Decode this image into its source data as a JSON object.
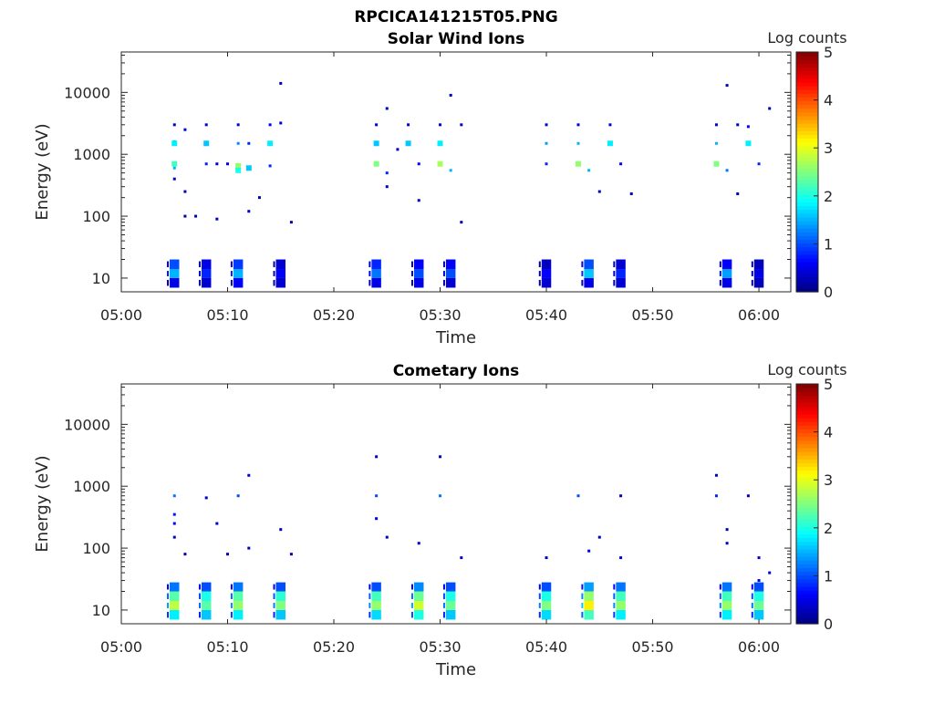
{
  "figure": {
    "title": "RPCICA141215T05.PNG"
  },
  "chart_data": [
    {
      "type": "heatmap",
      "title": "Solar Wind Ions",
      "xlabel": "Time",
      "ylabel": "Energy (eV)",
      "x_ticks": [
        "05:00",
        "05:10",
        "05:20",
        "05:30",
        "05:40",
        "05:50",
        "06:00"
      ],
      "y_ticks": [
        "10",
        "100",
        "1000",
        "10000"
      ],
      "y_scale": "log",
      "xlim": [
        "05:00",
        "06:03"
      ],
      "ylim": [
        6,
        45000
      ],
      "colorbar": {
        "label": "Log counts",
        "ticks": [
          "0",
          "1",
          "2",
          "3",
          "4",
          "5"
        ],
        "range": [
          0,
          5
        ],
        "colormap": "jet"
      },
      "grid": false,
      "points": [
        {
          "t": "05:05",
          "e": 3000,
          "v": 0.3
        },
        {
          "t": "05:05",
          "e": 1600,
          "v": 1.2
        },
        {
          "t": "05:05",
          "e": 1500,
          "v": 1.8
        },
        {
          "t": "05:05",
          "e": 700,
          "v": 2.2
        },
        {
          "t": "05:05",
          "e": 600,
          "v": 1.5
        },
        {
          "t": "05:05",
          "e": 400,
          "v": 0.3
        },
        {
          "t": "05:06",
          "e": 2500,
          "v": 0.4
        },
        {
          "t": "05:06",
          "e": 250,
          "v": 0.2
        },
        {
          "t": "05:06",
          "e": 100,
          "v": 0.2
        },
        {
          "t": "05:07",
          "e": 100,
          "v": 0.3
        },
        {
          "t": "05:08",
          "e": 3000,
          "v": 0.4
        },
        {
          "t": "05:08",
          "e": 1500,
          "v": 1.6
        },
        {
          "t": "05:08",
          "e": 700,
          "v": 0.8
        },
        {
          "t": "05:09",
          "e": 700,
          "v": 0.4
        },
        {
          "t": "05:09",
          "e": 90,
          "v": 0.3
        },
        {
          "t": "05:10",
          "e": 700,
          "v": 0.5
        },
        {
          "t": "05:11",
          "e": 3000,
          "v": 0.5
        },
        {
          "t": "05:11",
          "e": 1500,
          "v": 1.3
        },
        {
          "t": "05:11",
          "e": 650,
          "v": 2.6
        },
        {
          "t": "05:11",
          "e": 550,
          "v": 2.0
        },
        {
          "t": "05:12",
          "e": 600,
          "v": 1.6
        },
        {
          "t": "05:12",
          "e": 1500,
          "v": 0.8
        },
        {
          "t": "05:12",
          "e": 120,
          "v": 0.3
        },
        {
          "t": "05:13",
          "e": 200,
          "v": 0.2
        },
        {
          "t": "05:14",
          "e": 3000,
          "v": 0.6
        },
        {
          "t": "05:14",
          "e": 1500,
          "v": 1.8
        },
        {
          "t": "05:14",
          "e": 650,
          "v": 0.8
        },
        {
          "t": "05:15",
          "e": 3200,
          "v": 0.4
        },
        {
          "t": "05:15",
          "e": 14000,
          "v": 0.3
        },
        {
          "t": "05:16",
          "e": 80,
          "v": 0.2
        },
        {
          "t": "05:24",
          "e": 700,
          "v": 2.5
        },
        {
          "t": "05:24",
          "e": 1500,
          "v": 1.6
        },
        {
          "t": "05:24",
          "e": 3000,
          "v": 0.4
        },
        {
          "t": "05:25",
          "e": 5500,
          "v": 0.3
        },
        {
          "t": "05:25",
          "e": 500,
          "v": 0.8
        },
        {
          "t": "05:25",
          "e": 300,
          "v": 0.3
        },
        {
          "t": "05:26",
          "e": 1200,
          "v": 0.3
        },
        {
          "t": "05:27",
          "e": 3000,
          "v": 0.4
        },
        {
          "t": "05:27",
          "e": 1500,
          "v": 1.6
        },
        {
          "t": "05:28",
          "e": 700,
          "v": 0.6
        },
        {
          "t": "05:28",
          "e": 180,
          "v": 0.3
        },
        {
          "t": "05:30",
          "e": 3000,
          "v": 0.4
        },
        {
          "t": "05:30",
          "e": 1500,
          "v": 1.8
        },
        {
          "t": "05:30",
          "e": 700,
          "v": 2.7
        },
        {
          "t": "05:31",
          "e": 550,
          "v": 1.5
        },
        {
          "t": "05:31",
          "e": 9000,
          "v": 0.3
        },
        {
          "t": "05:32",
          "e": 3000,
          "v": 0.3
        },
        {
          "t": "05:32",
          "e": 80,
          "v": 0.2
        },
        {
          "t": "05:40",
          "e": 3000,
          "v": 0.4
        },
        {
          "t": "05:40",
          "e": 1500,
          "v": 1.4
        },
        {
          "t": "05:40",
          "e": 700,
          "v": 0.8
        },
        {
          "t": "05:43",
          "e": 3000,
          "v": 0.5
        },
        {
          "t": "05:43",
          "e": 1500,
          "v": 1.5
        },
        {
          "t": "05:43",
          "e": 700,
          "v": 2.6
        },
        {
          "t": "05:44",
          "e": 550,
          "v": 1.5
        },
        {
          "t": "05:45",
          "e": 250,
          "v": 0.3
        },
        {
          "t": "05:46",
          "e": 3000,
          "v": 0.4
        },
        {
          "t": "05:46",
          "e": 1500,
          "v": 1.8
        },
        {
          "t": "05:47",
          "e": 700,
          "v": 0.6
        },
        {
          "t": "05:48",
          "e": 230,
          "v": 0.3
        },
        {
          "t": "05:56",
          "e": 3000,
          "v": 0.4
        },
        {
          "t": "05:56",
          "e": 1500,
          "v": 1.5
        },
        {
          "t": "05:56",
          "e": 700,
          "v": 2.5
        },
        {
          "t": "05:57",
          "e": 550,
          "v": 1.2
        },
        {
          "t": "05:57",
          "e": 13000,
          "v": 0.3
        },
        {
          "t": "05:58",
          "e": 3000,
          "v": 0.3
        },
        {
          "t": "05:58",
          "e": 230,
          "v": 0.3
        },
        {
          "t": "05:59",
          "e": 2800,
          "v": 0.6
        },
        {
          "t": "05:59",
          "e": 1500,
          "v": 1.8
        },
        {
          "t": "06:00",
          "e": 700,
          "v": 0.8
        },
        {
          "t": "06:01",
          "e": 5500,
          "v": 0.3
        }
      ],
      "low_bands": [
        {
          "t": "05:05",
          "v": [
            0.5,
            1.5,
            1.0
          ]
        },
        {
          "t": "05:08",
          "v": [
            0.4,
            0.8,
            0.5
          ]
        },
        {
          "t": "05:11",
          "v": [
            0.6,
            1.5,
            0.9
          ]
        },
        {
          "t": "05:15",
          "v": [
            0.4,
            0.6,
            0.4
          ]
        },
        {
          "t": "05:24",
          "v": [
            0.5,
            1.2,
            0.8
          ]
        },
        {
          "t": "05:28",
          "v": [
            0.5,
            1.0,
            0.6
          ]
        },
        {
          "t": "05:31",
          "v": [
            0.4,
            1.0,
            0.6
          ]
        },
        {
          "t": "05:40",
          "v": [
            0.4,
            0.6,
            0.3
          ]
        },
        {
          "t": "05:44",
          "v": [
            0.5,
            1.6,
            1.0
          ]
        },
        {
          "t": "05:47",
          "v": [
            0.4,
            0.8,
            0.4
          ]
        },
        {
          "t": "05:57",
          "v": [
            0.5,
            1.4,
            0.6
          ]
        },
        {
          "t": "06:00",
          "v": [
            0.3,
            0.5,
            0.3
          ]
        }
      ]
    },
    {
      "type": "heatmap",
      "title": "Cometary Ions",
      "xlabel": "Time",
      "ylabel": "Energy (eV)",
      "x_ticks": [
        "05:00",
        "05:10",
        "05:20",
        "05:30",
        "05:40",
        "05:50",
        "06:00"
      ],
      "y_ticks": [
        "10",
        "100",
        "1000",
        "10000"
      ],
      "y_scale": "log",
      "xlim": [
        "05:00",
        "06:03"
      ],
      "ylim": [
        6,
        45000
      ],
      "colorbar": {
        "label": "Log counts",
        "ticks": [
          "0",
          "1",
          "2",
          "3",
          "4",
          "5"
        ],
        "range": [
          0,
          5
        ],
        "colormap": "jet"
      },
      "grid": false,
      "points": [
        {
          "t": "05:05",
          "e": 700,
          "v": 1.2
        },
        {
          "t": "05:05",
          "e": 350,
          "v": 0.7
        },
        {
          "t": "05:05",
          "e": 250,
          "v": 0.6
        },
        {
          "t": "05:05",
          "e": 150,
          "v": 0.4
        },
        {
          "t": "05:06",
          "e": 80,
          "v": 0.3
        },
        {
          "t": "05:08",
          "e": 650,
          "v": 0.4
        },
        {
          "t": "05:09",
          "e": 250,
          "v": 0.4
        },
        {
          "t": "05:10",
          "e": 80,
          "v": 0.3
        },
        {
          "t": "05:11",
          "e": 700,
          "v": 1.0
        },
        {
          "t": "05:12",
          "e": 1500,
          "v": 0.4
        },
        {
          "t": "05:12",
          "e": 100,
          "v": 0.3
        },
        {
          "t": "05:15",
          "e": 200,
          "v": 0.3
        },
        {
          "t": "05:16",
          "e": 80,
          "v": 0.3
        },
        {
          "t": "05:24",
          "e": 700,
          "v": 1.0
        },
        {
          "t": "05:24",
          "e": 3000,
          "v": 0.3
        },
        {
          "t": "05:24",
          "e": 300,
          "v": 0.5
        },
        {
          "t": "05:25",
          "e": 150,
          "v": 0.3
        },
        {
          "t": "05:28",
          "e": 120,
          "v": 0.3
        },
        {
          "t": "05:30",
          "e": 700,
          "v": 1.2
        },
        {
          "t": "05:30",
          "e": 3000,
          "v": 0.3
        },
        {
          "t": "05:32",
          "e": 70,
          "v": 0.3
        },
        {
          "t": "05:40",
          "e": 70,
          "v": 0.3
        },
        {
          "t": "05:43",
          "e": 700,
          "v": 1.0
        },
        {
          "t": "05:44",
          "e": 90,
          "v": 0.5
        },
        {
          "t": "05:45",
          "e": 150,
          "v": 0.3
        },
        {
          "t": "05:47",
          "e": 700,
          "v": 0.3
        },
        {
          "t": "05:47",
          "e": 70,
          "v": 0.5
        },
        {
          "t": "05:56",
          "e": 700,
          "v": 0.8
        },
        {
          "t": "05:56",
          "e": 1500,
          "v": 0.3
        },
        {
          "t": "05:57",
          "e": 120,
          "v": 0.3
        },
        {
          "t": "05:57",
          "e": 200,
          "v": 0.3
        },
        {
          "t": "05:59",
          "e": 700,
          "v": 0.3
        },
        {
          "t": "06:00",
          "e": 70,
          "v": 0.4
        },
        {
          "t": "06:00",
          "e": 30,
          "v": 0.5
        },
        {
          "t": "06:01",
          "e": 40,
          "v": 0.4
        }
      ],
      "low_bands": [
        {
          "t": "05:05",
          "v": [
            1.8,
            2.8,
            2.3,
            1.2
          ]
        },
        {
          "t": "05:08",
          "v": [
            1.6,
            2.3,
            2.0,
            1.0
          ]
        },
        {
          "t": "05:11",
          "v": [
            1.8,
            2.6,
            2.3,
            1.2
          ]
        },
        {
          "t": "05:15",
          "v": [
            1.6,
            2.5,
            2.1,
            1.0
          ]
        },
        {
          "t": "05:24",
          "v": [
            1.7,
            2.6,
            2.2,
            1.0
          ]
        },
        {
          "t": "05:28",
          "v": [
            2.0,
            2.9,
            2.4,
            1.3
          ]
        },
        {
          "t": "05:31",
          "v": [
            1.6,
            2.4,
            2.0,
            1.0
          ]
        },
        {
          "t": "05:40",
          "v": [
            1.7,
            2.5,
            2.0,
            1.0
          ]
        },
        {
          "t": "05:44",
          "v": [
            2.2,
            3.2,
            2.6,
            1.4
          ]
        },
        {
          "t": "05:47",
          "v": [
            1.8,
            2.6,
            2.2,
            1.2
          ]
        },
        {
          "t": "05:57",
          "v": [
            1.8,
            2.6,
            2.2,
            1.2
          ]
        },
        {
          "t": "06:00",
          "v": [
            1.6,
            2.4,
            2.0,
            1.0
          ]
        }
      ]
    }
  ]
}
